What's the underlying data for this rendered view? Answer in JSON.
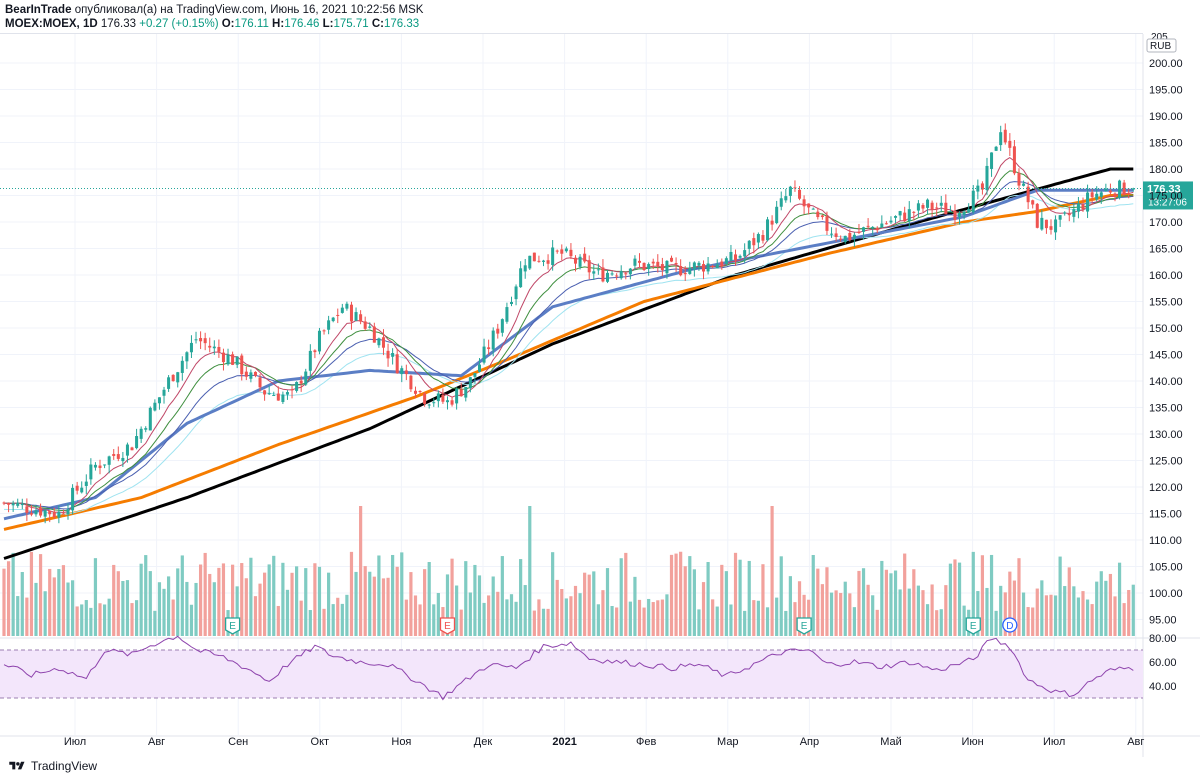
{
  "header": {
    "author": "BearInTrade",
    "published_text": "опубликовал(а) на TradingView.com, Июнь 16, 2021 10:22:56 MSK",
    "symbol": "MOEX:MOEX, 1D",
    "last": "176.33",
    "change": "+0.27 (+0.15%)",
    "o_label": "O:",
    "o_value": "176.11",
    "h_label": "H:",
    "h_value": "176.46",
    "l_label": "L:",
    "l_value": "175.71",
    "c_label": "C:",
    "c_value": "176.33"
  },
  "footer": {
    "brand": "TradingView"
  },
  "colors": {
    "up": "#26a69a",
    "down": "#ef5350",
    "vol_up": "#7fcbc2",
    "vol_down": "#f2a19c",
    "sma200": "#000000",
    "sma100": "#f57c00",
    "ema50": "#5b7ec5",
    "ema": "#3f8f3f",
    "ema_light": "#9fe3f0",
    "rsi_line": "#8e44ad",
    "rsi_band": "#f3e6fb"
  },
  "chart_data": {
    "type": "candlestick",
    "title": "MOEX:MOEX, 1D",
    "ylim": [
      93,
      205
    ],
    "y_ticks": [
      95,
      100,
      105,
      110,
      115,
      120,
      125,
      130,
      135,
      140,
      145,
      150,
      155,
      160,
      165,
      170,
      175,
      180,
      185,
      190,
      195,
      200
    ],
    "top_tick_label": "205",
    "currency": "RUB",
    "x_labels": [
      "Июл",
      "Авг",
      "Сен",
      "Окт",
      "Ноя",
      "Дек",
      "2021",
      "Фев",
      "Мар",
      "Апр",
      "Май",
      "Июн",
      "Июл",
      "Авг"
    ],
    "last_price_label": "176.33",
    "countdown": "13:27:06",
    "last_price": 176.33,
    "price_anchors": [
      [
        0,
        117
      ],
      [
        12,
        115
      ],
      [
        20,
        124
      ],
      [
        28,
        128
      ],
      [
        36,
        140
      ],
      [
        42,
        148
      ],
      [
        50,
        144
      ],
      [
        57,
        138
      ],
      [
        63,
        137
      ],
      [
        69,
        148
      ],
      [
        74,
        154
      ],
      [
        80,
        150
      ],
      [
        86,
        143
      ],
      [
        92,
        137
      ],
      [
        97,
        136
      ],
      [
        102,
        140
      ],
      [
        108,
        150
      ],
      [
        114,
        163
      ],
      [
        122,
        164
      ],
      [
        130,
        160
      ],
      [
        138,
        162
      ],
      [
        146,
        161
      ],
      [
        154,
        162
      ],
      [
        160,
        163
      ],
      [
        166,
        168
      ],
      [
        172,
        176
      ],
      [
        178,
        170
      ],
      [
        184,
        167
      ],
      [
        190,
        169
      ],
      [
        196,
        171
      ],
      [
        202,
        173
      ],
      [
        208,
        172
      ],
      [
        214,
        176
      ],
      [
        218,
        188
      ],
      [
        222,
        178
      ],
      [
        226,
        170
      ],
      [
        230,
        169
      ],
      [
        234,
        172
      ],
      [
        238,
        175
      ],
      [
        242,
        176.3
      ]
    ],
    "sma200": [
      [
        0,
        106.5
      ],
      [
        40,
        118
      ],
      [
        80,
        131
      ],
      [
        120,
        147
      ],
      [
        160,
        160
      ],
      [
        200,
        170
      ],
      [
        242,
        180
      ]
    ],
    "sma100": [
      [
        0,
        112
      ],
      [
        30,
        118
      ],
      [
        60,
        128
      ],
      [
        90,
        137
      ],
      [
        110,
        144
      ],
      [
        140,
        155
      ],
      [
        180,
        164
      ],
      [
        210,
        170
      ],
      [
        226,
        172
      ],
      [
        242,
        175
      ]
    ],
    "ema_main": [
      [
        0,
        114
      ],
      [
        20,
        118
      ],
      [
        40,
        132
      ],
      [
        60,
        140
      ],
      [
        80,
        142
      ],
      [
        100,
        141
      ],
      [
        120,
        154
      ],
      [
        150,
        161
      ],
      [
        180,
        166
      ],
      [
        210,
        171
      ],
      [
        226,
        176
      ],
      [
        242,
        176
      ]
    ],
    "rsi": {
      "levels": [
        70,
        30
      ],
      "y_ticks": [
        40,
        60,
        80
      ],
      "values": [
        [
          0,
          58
        ],
        [
          6,
          49
        ],
        [
          12,
          55
        ],
        [
          18,
          46
        ],
        [
          22,
          70
        ],
        [
          28,
          66
        ],
        [
          32,
          74
        ],
        [
          38,
          82
        ],
        [
          42,
          70
        ],
        [
          48,
          64
        ],
        [
          54,
          53
        ],
        [
          58,
          44
        ],
        [
          62,
          58
        ],
        [
          68,
          73
        ],
        [
          72,
          65
        ],
        [
          78,
          60
        ],
        [
          84,
          58
        ],
        [
          90,
          45
        ],
        [
          96,
          31
        ],
        [
          100,
          42
        ],
        [
          106,
          58
        ],
        [
          112,
          55
        ],
        [
          118,
          73
        ],
        [
          124,
          76
        ],
        [
          128,
          63
        ],
        [
          134,
          60
        ],
        [
          140,
          58
        ],
        [
          146,
          55
        ],
        [
          152,
          58
        ],
        [
          158,
          48
        ],
        [
          164,
          58
        ],
        [
          170,
          68
        ],
        [
          176,
          70
        ],
        [
          180,
          58
        ],
        [
          186,
          60
        ],
        [
          192,
          56
        ],
        [
          198,
          60
        ],
        [
          204,
          53
        ],
        [
          212,
          62
        ],
        [
          216,
          80
        ],
        [
          220,
          73
        ],
        [
          224,
          45
        ],
        [
          230,
          35
        ],
        [
          234,
          33
        ],
        [
          238,
          45
        ],
        [
          242,
          53
        ],
        [
          246,
          55
        ]
      ]
    },
    "earnings_markers": [
      {
        "bar": 50,
        "label": "E"
      },
      {
        "bar": 97,
        "label": "E"
      },
      {
        "bar": 175,
        "label": "E"
      },
      {
        "bar": 212,
        "label": "E"
      }
    ],
    "dividend_markers": [
      {
        "bar": 220,
        "label": "D"
      }
    ]
  }
}
